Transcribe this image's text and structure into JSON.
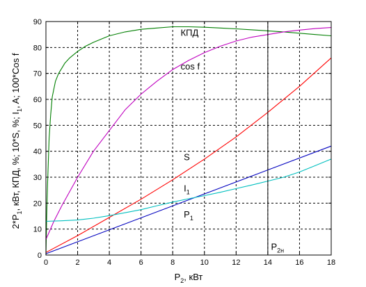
{
  "chart_data": {
    "type": "line",
    "title": "",
    "xlabel": {
      "base": "P",
      "sub": "2",
      "rest": ", кВт"
    },
    "ylabel": {
      "parts": [
        {
          "t": "2*P"
        },
        {
          "t": "1",
          "sub": true
        },
        {
          "t": ", кВт, КПД, %; 10*S, %; I"
        },
        {
          "t": "1",
          "sub": true
        },
        {
          "t": ", A; 100*Cos f"
        }
      ]
    },
    "xlim": [
      0,
      18
    ],
    "ylim": [
      0,
      90
    ],
    "xticks": [
      0,
      2,
      4,
      6,
      8,
      10,
      12,
      14,
      16,
      18
    ],
    "yticks": [
      0,
      10,
      20,
      30,
      40,
      50,
      60,
      70,
      80,
      90
    ],
    "grid": true,
    "series": [
      {
        "color": "#007f00",
        "x": [
          0,
          0.05,
          0.1,
          0.2,
          0.3,
          0.4,
          0.6,
          0.8,
          1,
          1.2,
          1.5,
          2,
          2.5,
          3,
          4,
          5,
          6,
          7,
          8,
          9,
          10,
          11,
          12,
          13,
          14,
          15,
          16,
          17,
          18
        ],
        "y": [
          0,
          15,
          27,
          45,
          54,
          61,
          67,
          70,
          72,
          74,
          76,
          78.5,
          80.5,
          82,
          84.5,
          86,
          87,
          87.5,
          88,
          88,
          87.8,
          87.5,
          87.2,
          86.8,
          86.4,
          86,
          85.5,
          85,
          84.5
        ]
      },
      {
        "color": "#bf00bf",
        "x": [
          0,
          0.5,
          1,
          2,
          3,
          4,
          5,
          6,
          7,
          8,
          9,
          10,
          11,
          12,
          13,
          14,
          15,
          16,
          17,
          18
        ],
        "y": [
          6,
          13,
          19,
          30,
          40,
          48,
          56,
          62,
          67,
          71.5,
          75,
          78,
          80.5,
          82.5,
          84,
          85,
          86,
          86.7,
          87.3,
          87.7
        ]
      },
      {
        "color": "#ff0000",
        "x": [
          0,
          2,
          4,
          6,
          8,
          10,
          12,
          14,
          16,
          18
        ],
        "y": [
          1,
          7.5,
          14.5,
          21.5,
          29,
          37,
          45.5,
          55,
          65,
          76
        ]
      },
      {
        "color": "#0000bf",
        "x": [
          0,
          18
        ],
        "y": [
          0.5,
          42
        ]
      },
      {
        "color": "#00bfbf",
        "x": [
          0,
          1,
          2,
          3,
          4,
          5,
          6,
          7,
          8,
          9,
          10,
          11,
          12,
          13,
          14,
          15,
          16,
          17,
          18
        ],
        "y": [
          13,
          13.2,
          13.5,
          14.2,
          15.2,
          16.3,
          17.5,
          19,
          20.4,
          21.7,
          22.9,
          24.2,
          25.6,
          27,
          28.5,
          30,
          32,
          34.5,
          37
        ]
      }
    ],
    "vline": {
      "x": 14,
      "color": "#000000"
    },
    "annotations": [
      {
        "text": "КПД",
        "x": 8.5,
        "y": 84.5
      },
      {
        "text": "cos f",
        "x": 8.5,
        "y": 71.5
      },
      {
        "text": "S",
        "x": 8.7,
        "y": 36.5
      },
      {
        "text": "I",
        "sub": "1",
        "x": 8.7,
        "y": 24.5
      },
      {
        "text": "P",
        "sub": "1",
        "x": 8.7,
        "y": 14.5
      },
      {
        "text": "P",
        "sub": "2н",
        "x": 14.2,
        "y": 2
      }
    ]
  }
}
